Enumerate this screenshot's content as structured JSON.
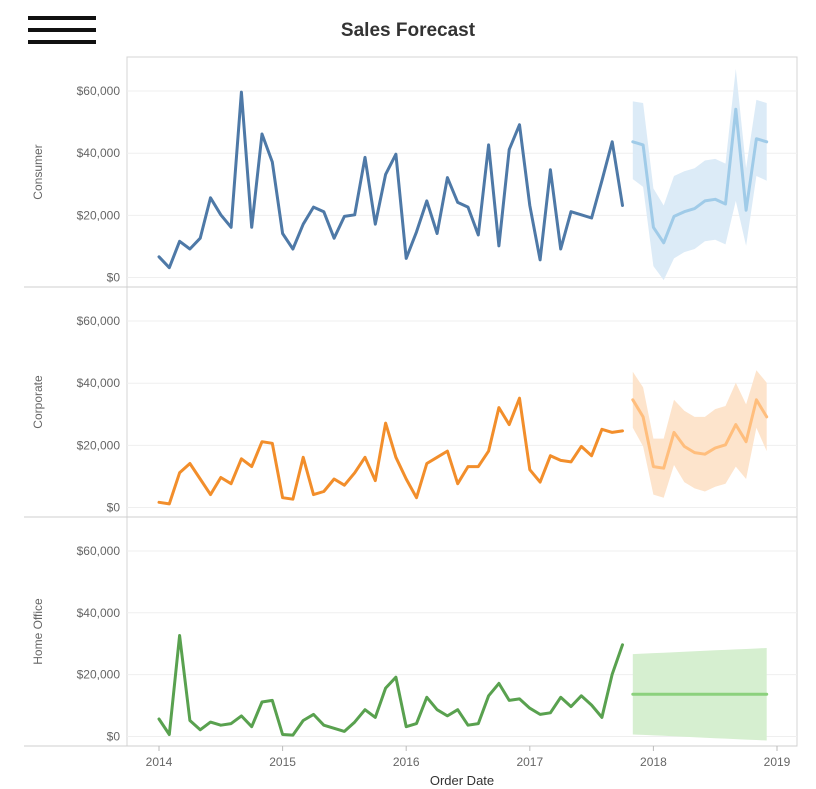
{
  "page": {
    "title": "Sales Forecast"
  },
  "menu_icon": "hamburger-menu-icon",
  "chart_data": {
    "type": "line",
    "title": "Sales Forecast",
    "xlabel": "Order Date",
    "x_ticks": [
      "2014",
      "2015",
      "2016",
      "2017",
      "2018",
      "2019"
    ],
    "y_ticks": [
      "$0",
      "$20,000",
      "$40,000",
      "$60,000"
    ],
    "ylim": [
      0,
      65000
    ],
    "grid": true,
    "panels": [
      {
        "name": "Consumer",
        "actual_color": "#4e79a7",
        "forecast_color": "#a0cbe8",
        "band_color": "#dcebf7",
        "actual": [
          6500,
          3000,
          11500,
          9000,
          12500,
          25500,
          20000,
          16000,
          59500,
          16000,
          46000,
          37000,
          14000,
          9000,
          17000,
          22500,
          21000,
          12500,
          19500,
          20000,
          38500,
          17000,
          33000,
          39500,
          6000,
          14500,
          24500,
          14000,
          32000,
          24000,
          22500,
          13500,
          42500,
          10000,
          41000,
          49000,
          23000,
          5500,
          34500,
          9000,
          21000,
          20000,
          19000,
          31000,
          43500,
          23000
        ],
        "forecast": [
          43500,
          42500,
          16000,
          11000,
          19500,
          21000,
          22000,
          24500,
          25000,
          23500,
          54000,
          21500,
          44500,
          43500
        ],
        "band_low": [
          31500,
          29000,
          3500,
          -1000,
          6000,
          8000,
          9000,
          11500,
          12000,
          10500,
          24500,
          10000,
          32500,
          31000
        ],
        "band_high": [
          56500,
          56000,
          28500,
          23000,
          32500,
          34000,
          35000,
          37500,
          38000,
          36500,
          67000,
          35000,
          57000,
          56000
        ]
      },
      {
        "name": "Corporate",
        "actual_color": "#f28e2b",
        "forecast_color": "#ffbe7d",
        "band_color": "#fde4cc",
        "actual": [
          1500,
          1000,
          11000,
          14000,
          9000,
          4000,
          9500,
          7500,
          15500,
          13000,
          21000,
          20500,
          3000,
          2500,
          16000,
          4000,
          5000,
          9000,
          7000,
          11000,
          16000,
          8500,
          27000,
          16000,
          9000,
          3000,
          14000,
          16000,
          18000,
          7500,
          13000,
          13000,
          18000,
          32000,
          26500,
          35000,
          12000,
          8000,
          16500,
          15000,
          14500,
          19500,
          16500,
          25000,
          24000,
          24500
        ],
        "forecast": [
          34500,
          29000,
          13000,
          12500,
          24000,
          19500,
          17500,
          17000,
          19000,
          20000,
          26500,
          21000,
          34500,
          29000
        ],
        "band_low": [
          25500,
          19500,
          4000,
          3000,
          13500,
          8000,
          6000,
          5000,
          6500,
          7500,
          13000,
          9000,
          25500,
          18000
        ],
        "band_high": [
          43500,
          38500,
          22000,
          22000,
          34500,
          31000,
          29000,
          29000,
          31500,
          32500,
          40000,
          33000,
          44000,
          40000
        ]
      },
      {
        "name": "Home Office",
        "actual_color": "#59a14f",
        "forecast_color": "#8cd17d",
        "band_color": "#d6efd0",
        "actual": [
          5500,
          500,
          32500,
          5000,
          2000,
          4500,
          3500,
          4000,
          6500,
          3000,
          11000,
          11500,
          500,
          300,
          5000,
          7000,
          3500,
          2500,
          1500,
          4500,
          8500,
          6000,
          15500,
          19000,
          3000,
          4000,
          12500,
          8500,
          6500,
          8500,
          3500,
          4000,
          13000,
          17000,
          11500,
          12000,
          9000,
          7000,
          7500,
          12500,
          9500,
          13000,
          10000,
          6000,
          20000,
          29500
        ],
        "forecast": [
          13500,
          13500,
          13500,
          13500,
          13500,
          13500,
          13500,
          13500,
          13500,
          13500,
          13500,
          13500,
          13500,
          13500
        ],
        "band_low": [
          500,
          350,
          200,
          50,
          -100,
          -250,
          -400,
          -550,
          -700,
          -850,
          -1000,
          -1150,
          -1300,
          -1450
        ],
        "band_high": [
          26500,
          26650,
          26800,
          26950,
          27100,
          27250,
          27400,
          27550,
          27700,
          27850,
          28000,
          28150,
          28300,
          28450
        ]
      }
    ]
  }
}
